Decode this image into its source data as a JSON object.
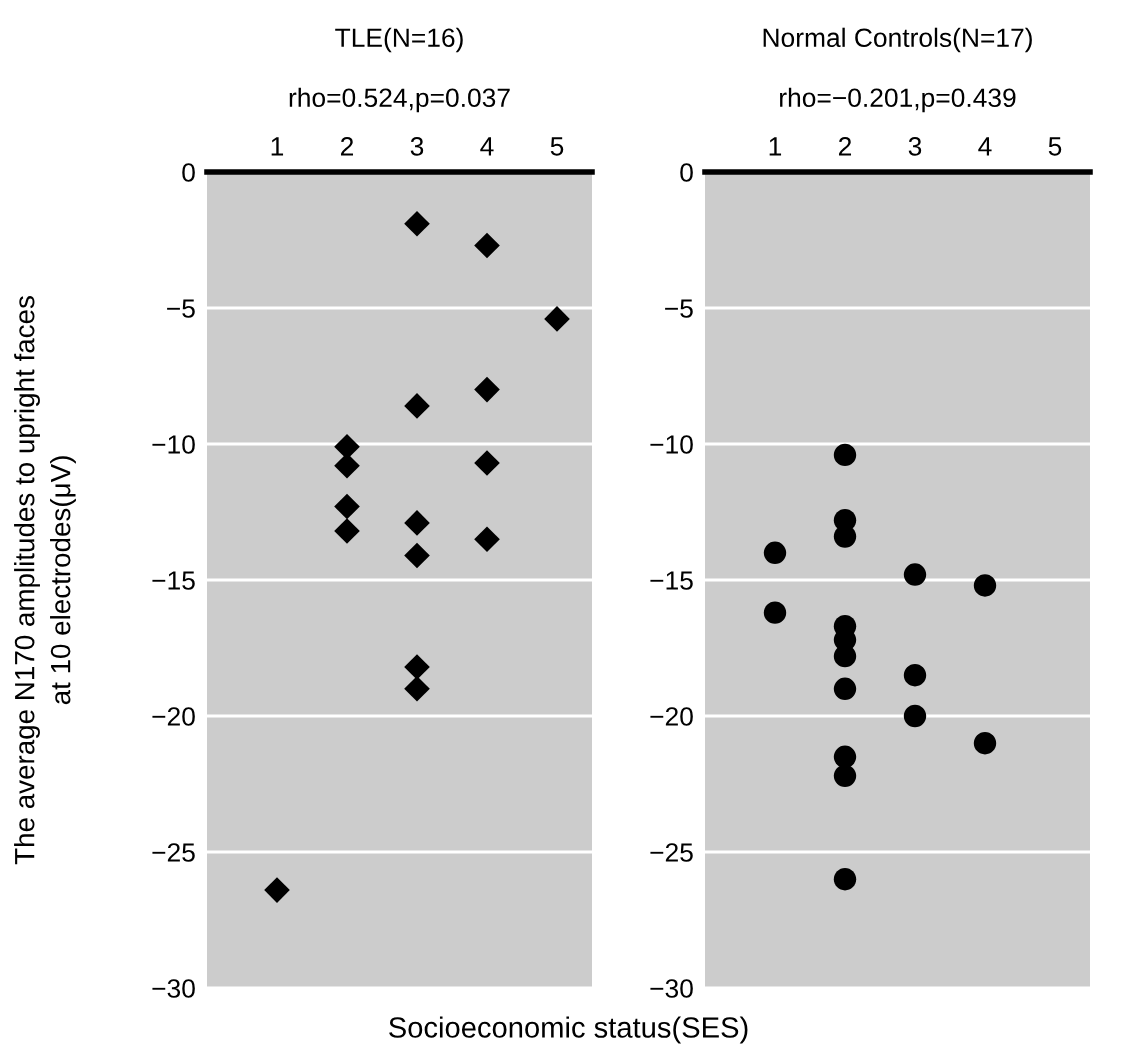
{
  "chart_data": [
    {
      "type": "scatter",
      "title": "TLE(N=16)",
      "subtitle": "rho=0.524,p=0.037",
      "ylabel": "The average N170 amplitudes to upright faces\nat 10 electrodes(μV)",
      "xlabel": "Socioeconomic status(SES)",
      "marker": "diamond",
      "grid": "y",
      "xlim": [
        0,
        5.5
      ],
      "xticks": [
        1,
        2,
        3,
        4,
        5
      ],
      "ylim": [
        -30,
        0
      ],
      "yticks": [
        0,
        {
          "value": -5,
          "label": "−5"
        },
        {
          "value": -10,
          "label": "−10"
        },
        {
          "value": -15,
          "label": "−15"
        },
        {
          "value": -20,
          "label": "−20"
        },
        {
          "value": -25,
          "label": "−25"
        },
        {
          "value": -30,
          "label": "−30"
        }
      ],
      "series": [
        {
          "color": "#000000",
          "x": [
            1,
            2,
            2,
            2,
            2,
            3,
            3,
            3,
            3,
            3,
            3,
            4,
            4,
            4,
            4,
            5
          ],
          "values": [
            -26.4,
            -10.1,
            -10.8,
            -12.3,
            -13.2,
            -1.9,
            -8.6,
            -12.9,
            -14.1,
            -18.2,
            -19.0,
            -2.7,
            -8.0,
            -10.7,
            -13.5,
            -5.4
          ]
        }
      ]
    },
    {
      "type": "scatter",
      "title": "Normal Controls(N=17)",
      "subtitle": "rho=−0.201,p=0.439",
      "marker": "circle",
      "grid": "y",
      "xlim": [
        0,
        5.5
      ],
      "xticks": [
        1,
        2,
        3,
        4,
        5
      ],
      "ylim": [
        -30,
        0
      ],
      "yticks": [
        0,
        {
          "value": -5,
          "label": "−5"
        },
        {
          "value": -10,
          "label": "−10"
        },
        {
          "value": -15,
          "label": "−15"
        },
        {
          "value": -20,
          "label": "−20"
        },
        {
          "value": -25,
          "label": "−25"
        },
        {
          "value": -30,
          "label": "−30"
        }
      ],
      "series": [
        {
          "color": "#000000",
          "x": [
            1,
            1,
            2,
            2,
            2,
            2,
            2,
            2,
            2,
            2,
            2,
            2,
            3,
            3,
            3,
            4,
            4
          ],
          "values": [
            -14.0,
            -16.2,
            -10.4,
            -12.8,
            -13.4,
            -16.7,
            -17.2,
            -17.8,
            -19.0,
            -21.5,
            -22.2,
            -26.0,
            -14.8,
            -18.5,
            -20.0,
            -15.2,
            -21.0
          ]
        }
      ]
    }
  ]
}
